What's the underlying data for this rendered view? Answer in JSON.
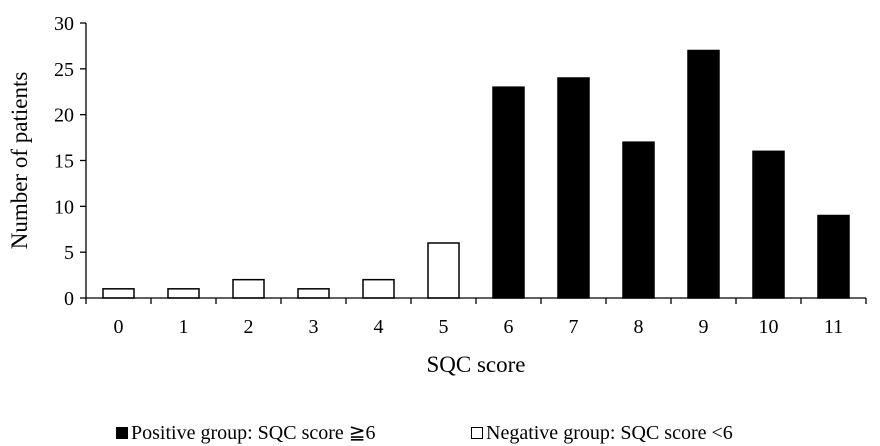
{
  "chart_data": {
    "type": "bar",
    "title": "",
    "xlabel": "SQC score",
    "ylabel": "Number of patients",
    "categories": [
      "0",
      "1",
      "2",
      "3",
      "4",
      "5",
      "6",
      "7",
      "8",
      "9",
      "10",
      "11"
    ],
    "ylim": [
      0,
      30
    ],
    "yticks": [
      "0",
      "5",
      "10",
      "15",
      "20",
      "25",
      "30"
    ],
    "grid": false,
    "legend_position": "bottom",
    "series": [
      {
        "name": "Positive group: SQC score ≧6",
        "style": "filled",
        "color": "#000000",
        "values": [
          null,
          null,
          null,
          null,
          null,
          null,
          23,
          24,
          17,
          27,
          16,
          9
        ]
      },
      {
        "name": "Negative group: SQC score <6",
        "style": "hollow",
        "color": "#ffffff",
        "values": [
          1,
          1,
          2,
          1,
          2,
          6,
          null,
          null,
          null,
          null,
          null,
          null
        ]
      }
    ]
  }
}
